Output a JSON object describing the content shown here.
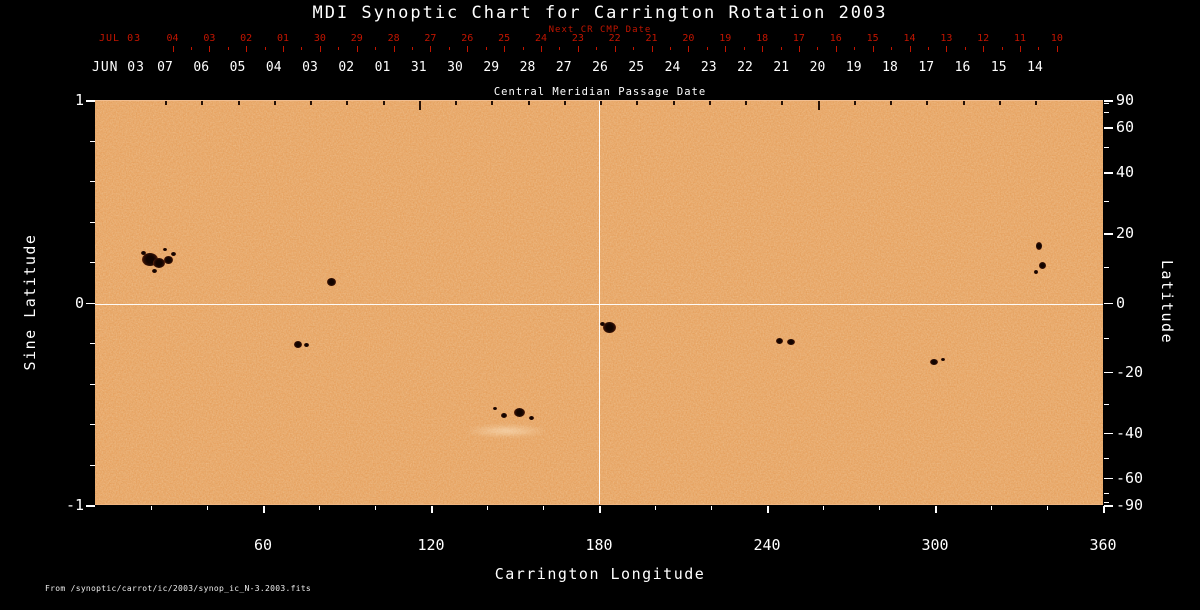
{
  "page": {
    "title": "MDI Synoptic Chart for Carrington Rotation 2003",
    "source_note": "From  /synoptic/carrot/ic/2003/synop_ic_N-3.2003.fits"
  },
  "colors": {
    "background": "#000000",
    "map_base": "#ec9c55",
    "red_axis_text": "#c21500",
    "white_text": "#ffffff",
    "sunspot_core": "#120400",
    "sunspot_penumbra": "#77300e"
  },
  "axes": {
    "top_red": {
      "label": "JUL 03",
      "note": "Next CR CMP Date",
      "ticks": [
        "04",
        "03",
        "02",
        "01",
        "30",
        "29",
        "28",
        "27",
        "26",
        "25",
        "24",
        "23",
        "22",
        "21",
        "20",
        "19",
        "18",
        "17",
        "16",
        "15",
        "14",
        "13",
        "12",
        "11",
        "10"
      ]
    },
    "top_white": {
      "label": "JUN 03",
      "axis_title": "Central Meridian Passage Date",
      "ticks": [
        "07",
        "06",
        "05",
        "04",
        "03",
        "02",
        "01",
        "31",
        "30",
        "29",
        "28",
        "27",
        "26",
        "25",
        "24",
        "23",
        "22",
        "21",
        "20",
        "19",
        "18",
        "17",
        "16",
        "15",
        "14"
      ]
    },
    "bottom": {
      "title": "Carrington Longitude",
      "ticks": [
        "60",
        "120",
        "180",
        "240",
        "300",
        "360"
      ]
    },
    "left": {
      "title": "Sine Latitude",
      "ticks": [
        "1",
        "0",
        "-1"
      ]
    },
    "right": {
      "title": "Latitude",
      "ticks": [
        "90",
        "60",
        "40",
        "20",
        "0",
        "-20",
        "-40",
        "-60",
        "-90"
      ]
    }
  },
  "chart_data": {
    "type": "heatmap",
    "title": "MDI Synoptic Chart for Carrington Rotation 2003",
    "xlabel": "Carrington Longitude",
    "ylabel_left": "Sine Latitude",
    "ylabel_right": "Latitude",
    "xlim": [
      0,
      360
    ],
    "ylim_sine_latitude": [
      -1,
      1
    ],
    "x_major_ticks": [
      60,
      120,
      180,
      240,
      300,
      360
    ],
    "x_minor_ticks": [
      20,
      40,
      80,
      100,
      140,
      160,
      200,
      220,
      260,
      280,
      320,
      340
    ],
    "left_major_ticks_sine": [
      1,
      0,
      -1
    ],
    "left_minor_ticks_sine": [
      0.8,
      0.6,
      0.4,
      0.2,
      -0.2,
      -0.4,
      -0.6,
      -0.8
    ],
    "right_minor_ticks_latitude_deg": [
      80,
      70,
      50,
      30,
      10,
      -10,
      -30,
      -50,
      -70,
      -80
    ],
    "crosshair": {
      "carrington_longitude": 180,
      "sine_latitude": 0
    },
    "background_value": "quiet-sun continuum intensity (granular orange)",
    "sunspots": [
      {
        "lon": 19.8,
        "sin_lat": 0.215,
        "w": 16,
        "h": 13
      },
      {
        "lon": 23.0,
        "sin_lat": 0.2,
        "w": 12,
        "h": 10
      },
      {
        "lon": 26.1,
        "sin_lat": 0.215,
        "w": 9,
        "h": 8
      },
      {
        "lon": 17.2,
        "sin_lat": 0.25,
        "w": 5,
        "h": 4
      },
      {
        "lon": 28.0,
        "sin_lat": 0.245,
        "w": 5,
        "h": 4
      },
      {
        "lon": 21.4,
        "sin_lat": 0.16,
        "w": 5,
        "h": 4
      },
      {
        "lon": 24.9,
        "sin_lat": 0.265,
        "w": 4,
        "h": 3
      },
      {
        "lon": 84.3,
        "sin_lat": 0.105,
        "w": 9,
        "h": 8
      },
      {
        "lon": 72.4,
        "sin_lat": -0.2,
        "w": 8,
        "h": 7
      },
      {
        "lon": 75.7,
        "sin_lat": -0.205,
        "w": 5,
        "h": 4
      },
      {
        "lon": 151.6,
        "sin_lat": -0.54,
        "w": 11,
        "h": 9
      },
      {
        "lon": 146.2,
        "sin_lat": -0.555,
        "w": 6,
        "h": 5
      },
      {
        "lon": 155.9,
        "sin_lat": -0.565,
        "w": 5,
        "h": 4
      },
      {
        "lon": 143.0,
        "sin_lat": -0.52,
        "w": 4,
        "h": 3
      },
      {
        "lon": 183.9,
        "sin_lat": -0.12,
        "w": 13,
        "h": 11
      },
      {
        "lon": 181.1,
        "sin_lat": -0.1,
        "w": 5,
        "h": 4
      },
      {
        "lon": 244.3,
        "sin_lat": -0.185,
        "w": 7,
        "h": 6
      },
      {
        "lon": 248.7,
        "sin_lat": -0.19,
        "w": 8,
        "h": 6
      },
      {
        "lon": 299.6,
        "sin_lat": -0.29,
        "w": 8,
        "h": 6
      },
      {
        "lon": 302.7,
        "sin_lat": -0.275,
        "w": 4,
        "h": 3
      },
      {
        "lon": 337.3,
        "sin_lat": 0.285,
        "w": 6,
        "h": 8
      },
      {
        "lon": 338.4,
        "sin_lat": 0.19,
        "w": 7,
        "h": 7
      },
      {
        "lon": 336.0,
        "sin_lat": 0.155,
        "w": 4,
        "h": 4
      }
    ],
    "bright_region": {
      "lon": 147,
      "sin_lat": -0.63,
      "w": 85,
      "h": 14
    }
  }
}
